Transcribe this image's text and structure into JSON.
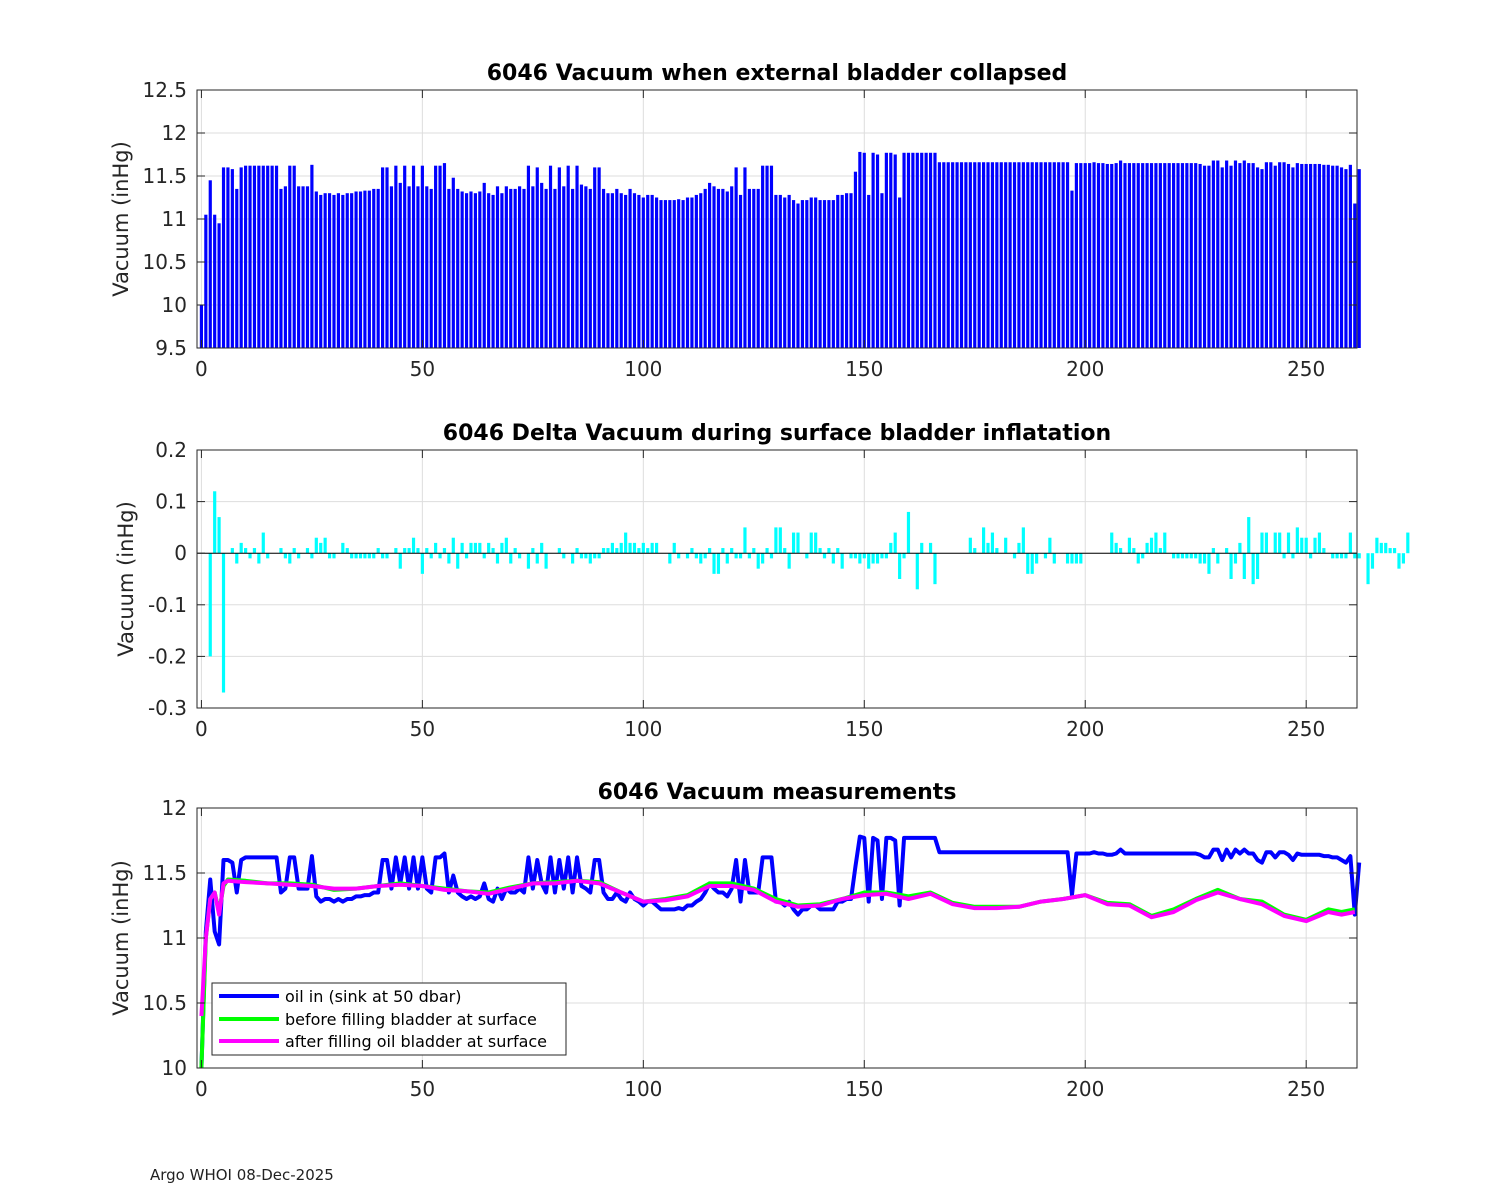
{
  "footer": "Argo WHOI 08-Dec-2025",
  "colors": {
    "vacuum_bar": "#0000ff",
    "delta_bar": "#00ffff",
    "oil_in": "#0000ff",
    "before_fill": "#00ff00",
    "after_fill": "#ff00ff",
    "grid": "#dddddd",
    "axis": "#262626"
  },
  "chart_data": [
    {
      "type": "bar",
      "title": "6046 Vacuum when external bladder collapsed",
      "xlabel": "",
      "ylabel": "Vacuum (inHg)",
      "xlim": [
        -1,
        261.5
      ],
      "ylim": [
        9.5,
        12.5
      ],
      "xticks": [
        0,
        50,
        100,
        150,
        200,
        250
      ],
      "yticks": [
        9.5,
        10,
        10.5,
        11,
        11.5,
        12,
        12.5
      ],
      "ytick_labels": [
        "9.5",
        "10",
        "10.5",
        "11",
        "11.5",
        "12",
        "12.5"
      ],
      "grid": true,
      "x_start": 0,
      "values": [
        10.0,
        11.05,
        11.45,
        11.05,
        10.95,
        11.6,
        11.6,
        11.58,
        11.35,
        11.6,
        11.62,
        11.62,
        11.62,
        11.62,
        11.62,
        11.62,
        11.62,
        11.62,
        11.35,
        11.38,
        11.62,
        11.62,
        11.38,
        11.38,
        11.38,
        11.63,
        11.32,
        11.28,
        11.3,
        11.3,
        11.28,
        11.3,
        11.28,
        11.3,
        11.3,
        11.32,
        11.32,
        11.33,
        11.33,
        11.35,
        11.35,
        11.6,
        11.6,
        11.38,
        11.62,
        11.42,
        11.62,
        11.38,
        11.62,
        11.38,
        11.62,
        11.38,
        11.35,
        11.62,
        11.62,
        11.65,
        11.35,
        11.48,
        11.35,
        11.32,
        11.3,
        11.32,
        11.3,
        11.32,
        11.42,
        11.3,
        11.28,
        11.38,
        11.3,
        11.38,
        11.35,
        11.35,
        11.38,
        11.35,
        11.62,
        11.38,
        11.6,
        11.42,
        11.35,
        11.62,
        11.35,
        11.6,
        11.38,
        11.62,
        11.35,
        11.62,
        11.4,
        11.38,
        11.35,
        11.6,
        11.6,
        11.35,
        11.3,
        11.3,
        11.35,
        11.3,
        11.28,
        11.35,
        11.3,
        11.28,
        11.25,
        11.28,
        11.28,
        11.25,
        11.22,
        11.22,
        11.22,
        11.22,
        11.23,
        11.22,
        11.25,
        11.25,
        11.28,
        11.3,
        11.35,
        11.42,
        11.38,
        11.35,
        11.35,
        11.32,
        11.38,
        11.6,
        11.28,
        11.6,
        11.35,
        11.35,
        11.35,
        11.62,
        11.62,
        11.62,
        11.28,
        11.28,
        11.25,
        11.28,
        11.22,
        11.18,
        11.22,
        11.22,
        11.25,
        11.25,
        11.22,
        11.22,
        11.22,
        11.22,
        11.28,
        11.28,
        11.3,
        11.3,
        11.55,
        11.78,
        11.77,
        11.28,
        11.77,
        11.75,
        11.3,
        11.77,
        11.77,
        11.75,
        11.25,
        11.77,
        11.77,
        11.77,
        11.77,
        11.77,
        11.77,
        11.77,
        11.77,
        11.66,
        11.66,
        11.66,
        11.66,
        11.66,
        11.66,
        11.66,
        11.66,
        11.66,
        11.66,
        11.66,
        11.66,
        11.66,
        11.66,
        11.66,
        11.66,
        11.66,
        11.66,
        11.66,
        11.66,
        11.66,
        11.66,
        11.66,
        11.66,
        11.66,
        11.66,
        11.66,
        11.66,
        11.66,
        11.66,
        11.33,
        11.65,
        11.65,
        11.65,
        11.65,
        11.66,
        11.65,
        11.65,
        11.64,
        11.64,
        11.65,
        11.68,
        11.65,
        11.65,
        11.65,
        11.65,
        11.65,
        11.65,
        11.65,
        11.65,
        11.65,
        11.65,
        11.65,
        11.65,
        11.65,
        11.65,
        11.65,
        11.65,
        11.65,
        11.64,
        11.62,
        11.62,
        11.68,
        11.68,
        11.6,
        11.68,
        11.62,
        11.68,
        11.65,
        11.68,
        11.65,
        11.65,
        11.6,
        11.58,
        11.66,
        11.66,
        11.62,
        11.66,
        11.66,
        11.64,
        11.6,
        11.65,
        11.64,
        11.64,
        11.64,
        11.64,
        11.64,
        11.63,
        11.63,
        11.62,
        11.62,
        11.6,
        11.58,
        11.63,
        11.18,
        11.58
      ]
    },
    {
      "type": "bar",
      "title": "6046 Delta Vacuum during surface bladder inflatation",
      "xlabel": "",
      "ylabel": "Vacuum (inHg)",
      "xlim": [
        -1,
        261.5
      ],
      "ylim": [
        -0.3,
        0.2
      ],
      "xticks": [
        0,
        50,
        100,
        150,
        200,
        250
      ],
      "yticks": [
        -0.3,
        -0.2,
        -0.1,
        0,
        0.1,
        0.2
      ],
      "ytick_labels": [
        "-0.3",
        "-0.2",
        "-0.1",
        "0",
        "0.1",
        "0.2"
      ],
      "grid": true,
      "x_start": 0,
      "values": [
        0,
        0,
        -0.2,
        0.12,
        0.07,
        -0.27,
        0,
        0.01,
        -0.02,
        0.02,
        0.01,
        -0.01,
        0.01,
        -0.02,
        0.04,
        -0.01,
        0,
        0,
        0.01,
        -0.01,
        -0.02,
        0.01,
        -0.01,
        0,
        0.01,
        -0.01,
        0.03,
        0.02,
        0.03,
        -0.01,
        -0.01,
        0,
        0.02,
        0.01,
        -0.01,
        -0.01,
        -0.01,
        -0.01,
        -0.01,
        -0.01,
        0.01,
        -0.01,
        -0.01,
        0,
        0.01,
        -0.03,
        0.01,
        0.01,
        0.03,
        0.01,
        -0.04,
        0.01,
        -0.01,
        0.02,
        -0.01,
        0.01,
        -0.02,
        0.03,
        -0.03,
        0.02,
        -0.01,
        0.02,
        0.02,
        0.02,
        -0.01,
        0.02,
        0.01,
        -0.02,
        0.02,
        0.03,
        -0.02,
        0.01,
        -0.01,
        0,
        -0.03,
        0.01,
        -0.02,
        0.02,
        -0.03,
        0,
        0,
        0.01,
        -0.01,
        0,
        -0.02,
        0.01,
        -0.01,
        -0.01,
        -0.02,
        -0.01,
        -0.01,
        0.01,
        0.01,
        0.02,
        0.01,
        0.02,
        0.04,
        0.02,
        0.02,
        0.01,
        0.02,
        0.01,
        0.02,
        0.02,
        0,
        0,
        -0.02,
        0.02,
        -0.01,
        0,
        -0.01,
        0.01,
        -0.01,
        -0.02,
        -0.01,
        0.01,
        -0.04,
        -0.04,
        0.01,
        -0.02,
        0.01,
        -0.01,
        -0.01,
        0.05,
        -0.01,
        0.01,
        -0.03,
        -0.02,
        0.01,
        -0.01,
        0.05,
        0.05,
        0.01,
        -0.03,
        0.04,
        0.04,
        0,
        -0.01,
        0.04,
        0.04,
        0.01,
        -0.01,
        0.01,
        -0.02,
        0.01,
        -0.03,
        0,
        -0.01,
        -0.01,
        -0.02,
        -0.01,
        -0.03,
        -0.02,
        -0.02,
        -0.01,
        -0.01,
        0.02,
        0.04,
        -0.05,
        -0.01,
        0.08,
        0,
        -0.07,
        0.02,
        0,
        0.02,
        -0.06,
        0,
        0,
        0,
        0,
        0,
        0,
        0,
        0.03,
        0.01,
        0,
        0.05,
        0.02,
        0.04,
        0.01,
        0,
        0.03,
        0,
        -0.01,
        0.02,
        0.05,
        -0.04,
        -0.04,
        -0.02,
        0,
        -0.01,
        0.03,
        -0.02,
        0,
        0,
        -0.02,
        -0.02,
        -0.02,
        -0.02,
        0,
        0,
        0,
        0,
        0,
        0,
        0.04,
        0.02,
        0.01,
        0,
        0.03,
        0.01,
        -0.02,
        -0.01,
        0.02,
        0.03,
        0.04,
        0.01,
        0.04,
        0,
        -0.01,
        -0.01,
        -0.01,
        -0.01,
        -0.01,
        -0.01,
        -0.02,
        -0.02,
        -0.04,
        0.01,
        -0.02,
        0,
        0.01,
        -0.05,
        -0.02,
        0.02,
        -0.05,
        0.07,
        -0.06,
        -0.05,
        0.04,
        0.04,
        0,
        0.04,
        0.04,
        -0.01,
        0.04,
        -0.01,
        0.05,
        0.03,
        0.03,
        -0.01,
        0.03,
        0.04,
        0.01,
        0,
        -0.01,
        -0.01,
        -0.01,
        -0.01,
        0.04,
        -0.01,
        -0.01,
        0,
        -0.06,
        -0.03,
        0.03,
        0.02,
        0.02,
        0.01,
        0.01,
        -0.03,
        -0.02,
        0.04
      ]
    },
    {
      "type": "line",
      "title": "6046 Vacuum measurements",
      "xlabel": "",
      "ylabel": "Vacuum (inHg)",
      "xlim": [
        -1,
        261.5
      ],
      "ylim": [
        10,
        12
      ],
      "xticks": [
        0,
        50,
        100,
        150,
        200,
        250
      ],
      "yticks": [
        10,
        10.5,
        11,
        11.5,
        12
      ],
      "ytick_labels": [
        "10",
        "10.5",
        "11",
        "11.5",
        "12"
      ],
      "grid": true,
      "legend_position": "bottom-left",
      "series": [
        {
          "name": "oil in (sink at 50 dbar)",
          "source": "panel1"
        },
        {
          "name": "before filling bladder at surface",
          "x": [
            0,
            1,
            2,
            3,
            4,
            5,
            6,
            10,
            15,
            20,
            25,
            30,
            35,
            40,
            45,
            50,
            55,
            60,
            65,
            70,
            75,
            80,
            85,
            90,
            95,
            100,
            105,
            110,
            115,
            120,
            125,
            130,
            135,
            140,
            145,
            150,
            155,
            160,
            165,
            170,
            175,
            180,
            185,
            190,
            195,
            200,
            205,
            210,
            215,
            220,
            225,
            230,
            235,
            240,
            245,
            250,
            255,
            258,
            261
          ],
          "values": [
            10.0,
            11.0,
            11.3,
            11.35,
            11.2,
            11.4,
            11.45,
            11.44,
            11.42,
            11.42,
            11.41,
            11.37,
            11.38,
            11.4,
            11.42,
            11.4,
            11.38,
            11.36,
            11.35,
            11.39,
            11.42,
            11.43,
            11.44,
            11.43,
            11.35,
            11.28,
            11.3,
            11.33,
            11.42,
            11.42,
            11.38,
            11.3,
            11.25,
            11.26,
            11.3,
            11.35,
            11.35,
            11.32,
            11.35,
            11.27,
            11.24,
            11.24,
            11.24,
            11.28,
            11.3,
            11.33,
            11.27,
            11.26,
            11.17,
            11.22,
            11.3,
            11.37,
            11.3,
            11.28,
            11.18,
            11.14,
            11.22,
            11.2,
            11.22
          ]
        },
        {
          "name": "after filling oil bladder at surface",
          "x": [
            0,
            1,
            2,
            3,
            4,
            5,
            6,
            10,
            15,
            20,
            25,
            30,
            35,
            40,
            45,
            50,
            55,
            60,
            65,
            70,
            75,
            80,
            85,
            90,
            95,
            100,
            105,
            110,
            115,
            120,
            125,
            130,
            135,
            140,
            145,
            150,
            155,
            160,
            165,
            170,
            175,
            180,
            185,
            190,
            195,
            200,
            205,
            210,
            215,
            220,
            225,
            230,
            235,
            240,
            245,
            250,
            255,
            258,
            261
          ],
          "values": [
            10.4,
            11.0,
            11.3,
            11.35,
            11.18,
            11.42,
            11.44,
            11.43,
            11.42,
            11.41,
            11.4,
            11.38,
            11.38,
            11.4,
            11.41,
            11.4,
            11.37,
            11.36,
            11.34,
            11.38,
            11.42,
            11.42,
            11.44,
            11.42,
            11.35,
            11.28,
            11.29,
            11.32,
            11.4,
            11.4,
            11.37,
            11.28,
            11.24,
            11.25,
            11.3,
            11.33,
            11.34,
            11.3,
            11.34,
            11.26,
            11.23,
            11.23,
            11.24,
            11.28,
            11.3,
            11.33,
            11.26,
            11.25,
            11.16,
            11.2,
            11.29,
            11.35,
            11.3,
            11.26,
            11.17,
            11.13,
            11.2,
            11.18,
            11.2
          ]
        }
      ]
    }
  ]
}
